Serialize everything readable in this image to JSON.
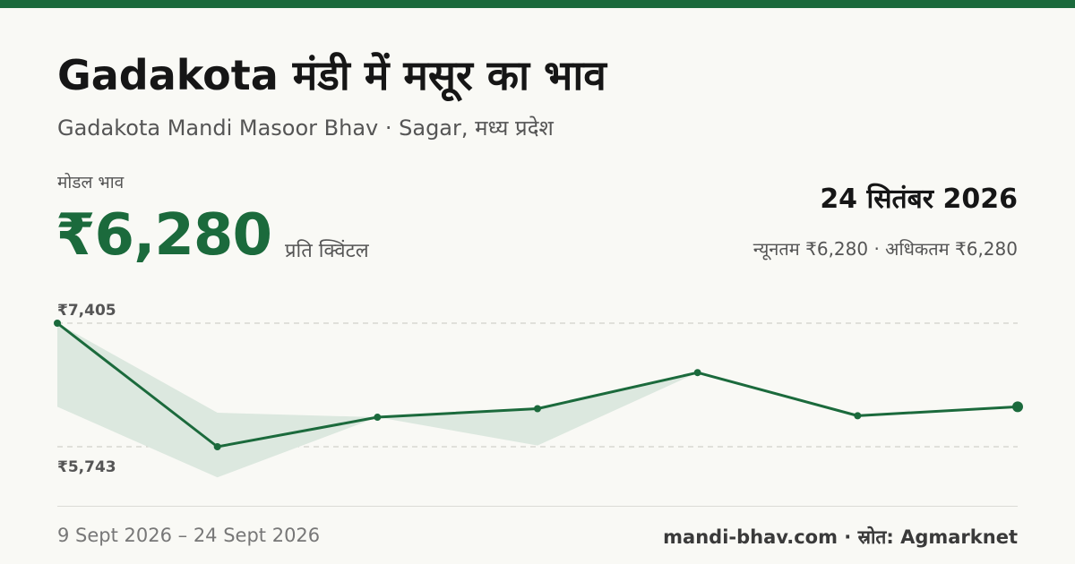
{
  "title": "Gadakota मंडी में मसूर का भाव",
  "subtitle": "Gadakota Mandi Masoor Bhav · Sagar, मध्य प्रदेश",
  "price": {
    "label": "मोडल भाव",
    "value": "₹6,280",
    "unit": "प्रति क्विंटल"
  },
  "date": "24 सितंबर 2026",
  "range_text": "न्यूनतम ₹6,280 · अधिकतम ₹6,280",
  "footer": {
    "date_range": "9 Sept 2026 – 24 Sept 2026",
    "source": "mandi-bhav.com · स्रोत: Agmarknet"
  },
  "colors": {
    "accent": "#1b6a3c",
    "band": "#dce8df",
    "grid": "#c8c8c0"
  },
  "chart_data": {
    "type": "line",
    "ylim": [
      5743,
      7405
    ],
    "y_labels": [
      "₹7,405",
      "₹5,743"
    ],
    "grid": true,
    "series": [
      {
        "values": [
          7405,
          5743,
          6140,
          6255,
          6740,
          6160,
          6280
        ]
      }
    ],
    "band": {
      "max": [
        7405,
        6200,
        6140,
        6255,
        6740,
        6160,
        6280
      ],
      "min": [
        6280,
        5330,
        6140,
        5760,
        6740,
        6160,
        6280
      ]
    }
  }
}
